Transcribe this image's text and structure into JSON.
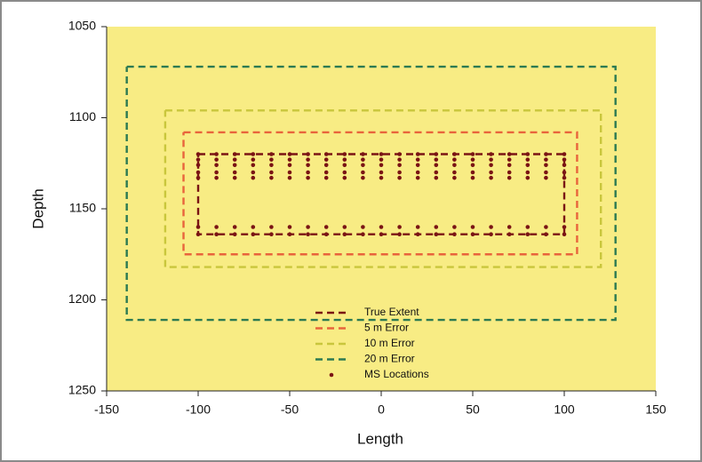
{
  "chart_data": {
    "type": "line",
    "xlabel": "Length",
    "ylabel": "Depth",
    "xlim": [
      -150,
      150
    ],
    "xticks": [
      -150,
      -100,
      -50,
      0,
      50,
      100,
      150
    ],
    "ylim": [
      1250,
      1050
    ],
    "yticks": [
      1050,
      1100,
      1150,
      1200,
      1250
    ],
    "background": "#f8ec84",
    "legend": "lower center",
    "series": [
      {
        "name": "True Extent",
        "color": "#7a1414",
        "dashed": true,
        "x": [
          -100,
          100,
          100,
          -100,
          -100
        ],
        "y": [
          1120,
          1120,
          1164,
          1164,
          1120
        ]
      },
      {
        "name": "5 m Error",
        "color": "#e8643c",
        "dashed": true,
        "x": [
          -108,
          107,
          107,
          -108,
          -108
        ],
        "y": [
          1108,
          1108,
          1175,
          1175,
          1108
        ]
      },
      {
        "name": "10 m Error",
        "color": "#c9c63c",
        "dashed": true,
        "x": [
          -118,
          120,
          120,
          -118,
          -118
        ],
        "y": [
          1096,
          1096,
          1182,
          1182,
          1096
        ]
      },
      {
        "name": "20 m Error",
        "color": "#2c7a52",
        "dashed": true,
        "x": [
          -139,
          128,
          128,
          -139,
          -139
        ],
        "y": [
          1072,
          1072,
          1211,
          1211,
          1072
        ]
      },
      {
        "name": "MS Locations",
        "color": "#7a1414",
        "type": "scatter",
        "x": [
          -100,
          -90,
          -80,
          -70,
          -60,
          -50,
          -40,
          -30,
          -20,
          -10,
          0,
          10,
          20,
          30,
          40,
          50,
          60,
          70,
          80,
          90,
          100,
          -100,
          -90,
          -80,
          -70,
          -60,
          -50,
          -40,
          -30,
          -20,
          -10,
          0,
          10,
          20,
          30,
          40,
          50,
          60,
          70,
          80,
          90,
          100,
          -100,
          -90,
          -80,
          -70,
          -60,
          -50,
          -40,
          -30,
          -20,
          -10,
          0,
          10,
          20,
          30,
          40,
          50,
          60,
          70,
          80,
          90,
          100,
          -100,
          -90,
          -80,
          -70,
          -60,
          -50,
          -40,
          -30,
          -20,
          -10,
          0,
          10,
          20,
          30,
          40,
          50,
          60,
          70,
          80,
          90,
          100,
          -100,
          -90,
          -80,
          -70,
          -60,
          -50,
          -40,
          -30,
          -20,
          -10,
          0,
          10,
          20,
          30,
          40,
          50,
          60,
          70,
          80,
          90,
          100,
          -100,
          -90,
          -80,
          -70,
          -60,
          -50,
          -40,
          -30,
          -20,
          -10,
          0,
          10,
          20,
          30,
          40,
          50,
          60,
          70,
          80,
          90,
          100,
          -100,
          -90,
          -80,
          -70,
          -60,
          -50,
          -40,
          -30,
          -20,
          -10,
          0,
          10,
          20,
          30,
          40,
          50,
          60,
          70,
          80,
          90,
          100
        ],
        "y": [
          1120,
          1120,
          1120,
          1120,
          1120,
          1120,
          1120,
          1120,
          1120,
          1120,
          1120,
          1120,
          1120,
          1120,
          1120,
          1120,
          1120,
          1120,
          1120,
          1120,
          1120,
          1123,
          1123,
          1123,
          1123,
          1123,
          1123,
          1123,
          1123,
          1123,
          1123,
          1123,
          1123,
          1123,
          1123,
          1123,
          1123,
          1123,
          1123,
          1123,
          1123,
          1123,
          1126,
          1126,
          1126,
          1126,
          1126,
          1126,
          1126,
          1126,
          1126,
          1126,
          1126,
          1126,
          1126,
          1126,
          1126,
          1126,
          1126,
          1126,
          1126,
          1126,
          1126,
          1130,
          1130,
          1130,
          1130,
          1130,
          1130,
          1130,
          1130,
          1130,
          1130,
          1130,
          1130,
          1130,
          1130,
          1130,
          1130,
          1130,
          1130,
          1130,
          1130,
          1130,
          1133,
          1133,
          1133,
          1133,
          1133,
          1133,
          1133,
          1133,
          1133,
          1133,
          1133,
          1133,
          1133,
          1133,
          1133,
          1133,
          1133,
          1133,
          1133,
          1133,
          1133,
          1160,
          1160,
          1160,
          1160,
          1160,
          1160,
          1160,
          1160,
          1160,
          1160,
          1160,
          1160,
          1160,
          1160,
          1160,
          1160,
          1160,
          1160,
          1160,
          1160,
          1160,
          1164,
          1164,
          1164,
          1164,
          1164,
          1164,
          1164,
          1164,
          1164,
          1164,
          1164,
          1164,
          1164,
          1164,
          1164,
          1164,
          1164,
          1164,
          1164,
          1164,
          1164
        ]
      }
    ]
  }
}
